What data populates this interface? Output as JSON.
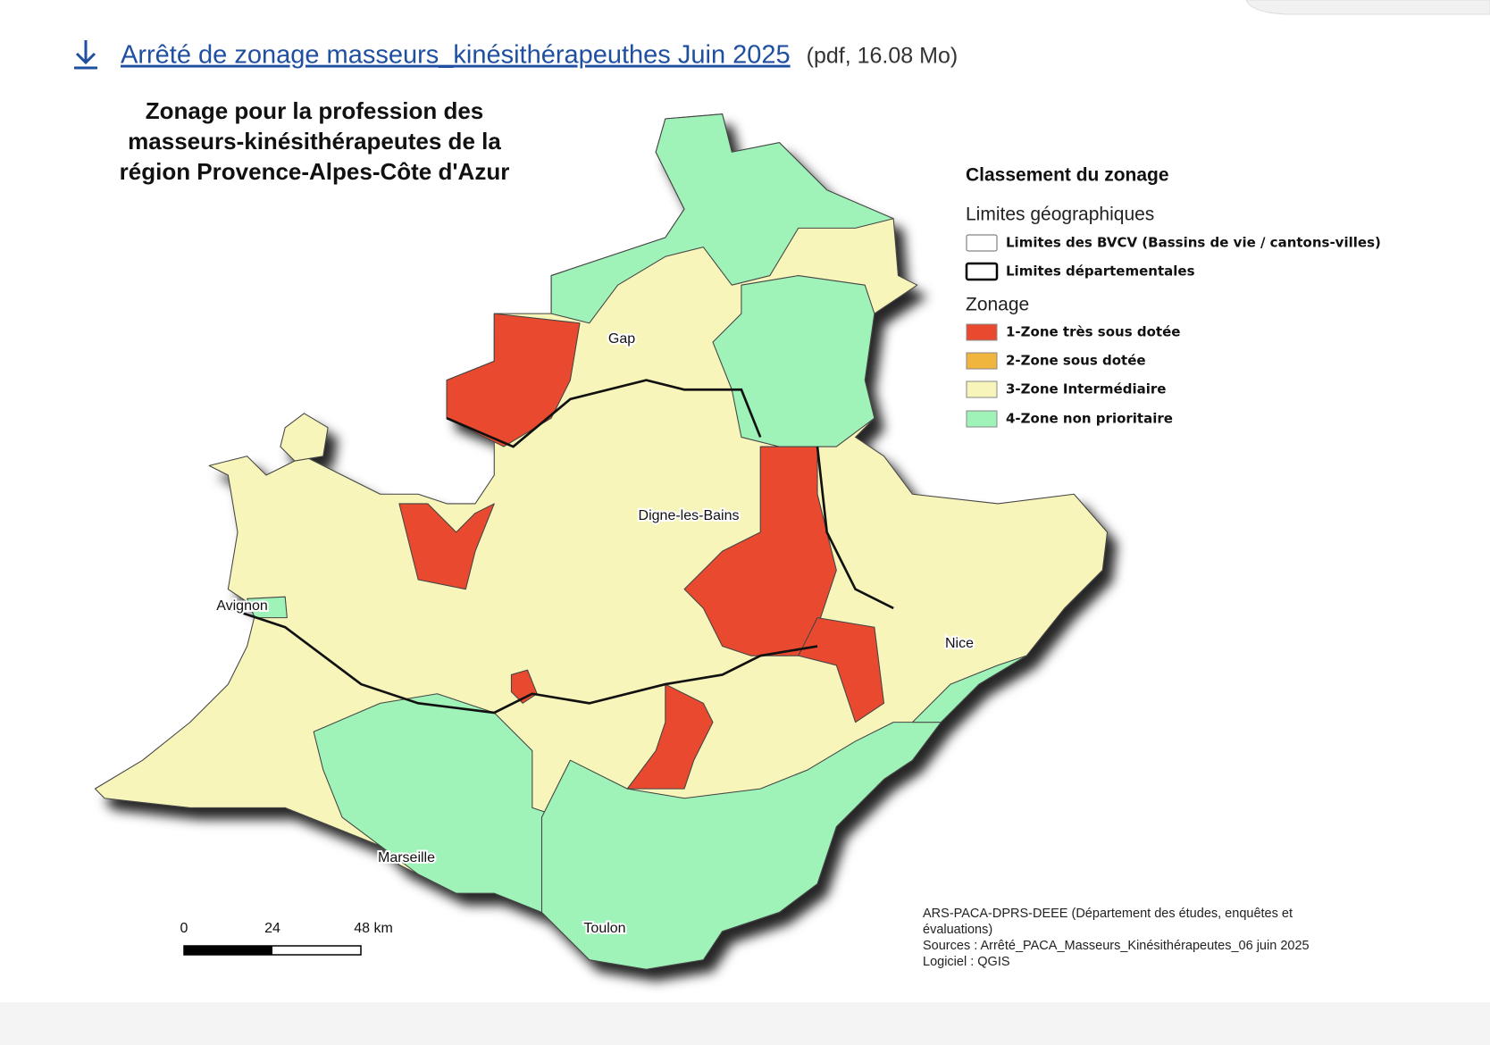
{
  "link": {
    "text": "Arrêté de zonage masseurs_kinésithérapeuthes Juin 2025",
    "meta": "(pdf, 16.08 Mo)"
  },
  "map": {
    "title": [
      "Zonage pour la profession des",
      "masseurs-kinésithérapeutes de la",
      "région Provence-Alpes-Côte d'Azur"
    ],
    "legend": {
      "title": "Classement du zonage",
      "groups": [
        {
          "title": "Limites géographiques",
          "items": [
            {
              "label": "Limites des BVCV (Bassins de vie / cantons-villes)"
            },
            {
              "label": "Limites départementales"
            }
          ]
        },
        {
          "title": "Zonage",
          "items": [
            {
              "label": "1-Zone très sous dotée",
              "color": "#e94a2f"
            },
            {
              "label": "2-Zone sous dotée",
              "color": "#efb53c"
            },
            {
              "label": "3-Zone Intermédiaire",
              "color": "#f8f5bb"
            },
            {
              "label": "4-Zone non prioritaire",
              "color": "#9ff3b9"
            }
          ]
        }
      ]
    },
    "cities": [
      "Gap",
      "Digne-les-Bains",
      "Avignon",
      "Nice",
      "Marseille",
      "Toulon"
    ],
    "scale": [
      "0",
      "24",
      "48 km"
    ],
    "source": [
      "ARS-PACA-DPRS-DEEE (Département des études, enquêtes et",
      "évaluations)",
      "Sources : Arrêté_PACA_Masseurs_Kinésithérapeutes_06 juin 2025",
      "Logiciel : QGIS"
    ]
  }
}
